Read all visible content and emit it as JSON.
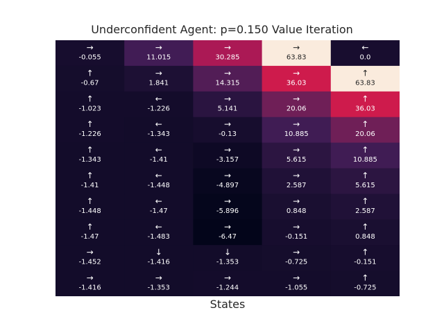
{
  "chart_data": {
    "type": "heatmap",
    "title": "Underconfident Agent: p=0.150 Value Iteration",
    "xlabel": "States",
    "ylabel": "",
    "n_rows": 10,
    "n_cols": 5,
    "colormap": "rocket",
    "value_range": [
      -6.47,
      63.83
    ],
    "text_colors": {
      "light": "#ffffff",
      "dark": "#262626"
    },
    "arrows": {
      "up": "↑",
      "down": "↓",
      "left": "←",
      "right": "→"
    },
    "cells": [
      [
        {
          "arrow": "right",
          "value": -0.055,
          "label": "-0.055"
        },
        {
          "arrow": "right",
          "value": 11.015,
          "label": "11.015"
        },
        {
          "arrow": "right",
          "value": 30.285,
          "label": "30.285"
        },
        {
          "arrow": "right",
          "value": 63.83,
          "label": "63.83"
        },
        {
          "arrow": "left",
          "value": 0.0,
          "label": "0.0"
        }
      ],
      [
        {
          "arrow": "up",
          "value": -0.67,
          "label": "-0.67"
        },
        {
          "arrow": "right",
          "value": 1.841,
          "label": "1.841"
        },
        {
          "arrow": "right",
          "value": 14.315,
          "label": "14.315"
        },
        {
          "arrow": "right",
          "value": 36.03,
          "label": "36.03"
        },
        {
          "arrow": "up",
          "value": 63.83,
          "label": "63.83"
        }
      ],
      [
        {
          "arrow": "up",
          "value": -1.023,
          "label": "-1.023"
        },
        {
          "arrow": "left",
          "value": -1.226,
          "label": "-1.226"
        },
        {
          "arrow": "right",
          "value": 5.141,
          "label": "5.141"
        },
        {
          "arrow": "right",
          "value": 20.06,
          "label": "20.06"
        },
        {
          "arrow": "up",
          "value": 36.03,
          "label": "36.03"
        }
      ],
      [
        {
          "arrow": "up",
          "value": -1.226,
          "label": "-1.226"
        },
        {
          "arrow": "left",
          "value": -1.343,
          "label": "-1.343"
        },
        {
          "arrow": "right",
          "value": -0.13,
          "label": "-0.13"
        },
        {
          "arrow": "right",
          "value": 10.885,
          "label": "10.885"
        },
        {
          "arrow": "up",
          "value": 20.06,
          "label": "20.06"
        }
      ],
      [
        {
          "arrow": "up",
          "value": -1.343,
          "label": "-1.343"
        },
        {
          "arrow": "left",
          "value": -1.41,
          "label": "-1.41"
        },
        {
          "arrow": "right",
          "value": -3.157,
          "label": "-3.157"
        },
        {
          "arrow": "right",
          "value": 5.615,
          "label": "5.615"
        },
        {
          "arrow": "up",
          "value": 10.885,
          "label": "10.885"
        }
      ],
      [
        {
          "arrow": "up",
          "value": -1.41,
          "label": "-1.41"
        },
        {
          "arrow": "left",
          "value": -1.448,
          "label": "-1.448"
        },
        {
          "arrow": "right",
          "value": -4.897,
          "label": "-4.897"
        },
        {
          "arrow": "right",
          "value": 2.587,
          "label": "2.587"
        },
        {
          "arrow": "up",
          "value": 5.615,
          "label": "5.615"
        }
      ],
      [
        {
          "arrow": "up",
          "value": -1.448,
          "label": "-1.448"
        },
        {
          "arrow": "left",
          "value": -1.47,
          "label": "-1.47"
        },
        {
          "arrow": "right",
          "value": -5.896,
          "label": "-5.896"
        },
        {
          "arrow": "right",
          "value": 0.848,
          "label": "0.848"
        },
        {
          "arrow": "up",
          "value": 2.587,
          "label": "2.587"
        }
      ],
      [
        {
          "arrow": "up",
          "value": -1.47,
          "label": "-1.47"
        },
        {
          "arrow": "left",
          "value": -1.483,
          "label": "-1.483"
        },
        {
          "arrow": "right",
          "value": -6.47,
          "label": "-6.47"
        },
        {
          "arrow": "right",
          "value": -0.151,
          "label": "-0.151"
        },
        {
          "arrow": "up",
          "value": 0.848,
          "label": "0.848"
        }
      ],
      [
        {
          "arrow": "right",
          "value": -1.452,
          "label": "-1.452"
        },
        {
          "arrow": "down",
          "value": -1.416,
          "label": "-1.416"
        },
        {
          "arrow": "down",
          "value": -1.353,
          "label": "-1.353"
        },
        {
          "arrow": "right",
          "value": -0.725,
          "label": "-0.725"
        },
        {
          "arrow": "up",
          "value": -0.151,
          "label": "-0.151"
        }
      ],
      [
        {
          "arrow": "right",
          "value": -1.416,
          "label": "-1.416"
        },
        {
          "arrow": "right",
          "value": -1.353,
          "label": "-1.353"
        },
        {
          "arrow": "right",
          "value": -1.244,
          "label": "-1.244"
        },
        {
          "arrow": "right",
          "value": -1.055,
          "label": "-1.055"
        },
        {
          "arrow": "up",
          "value": -0.725,
          "label": "-0.725"
        }
      ]
    ]
  }
}
